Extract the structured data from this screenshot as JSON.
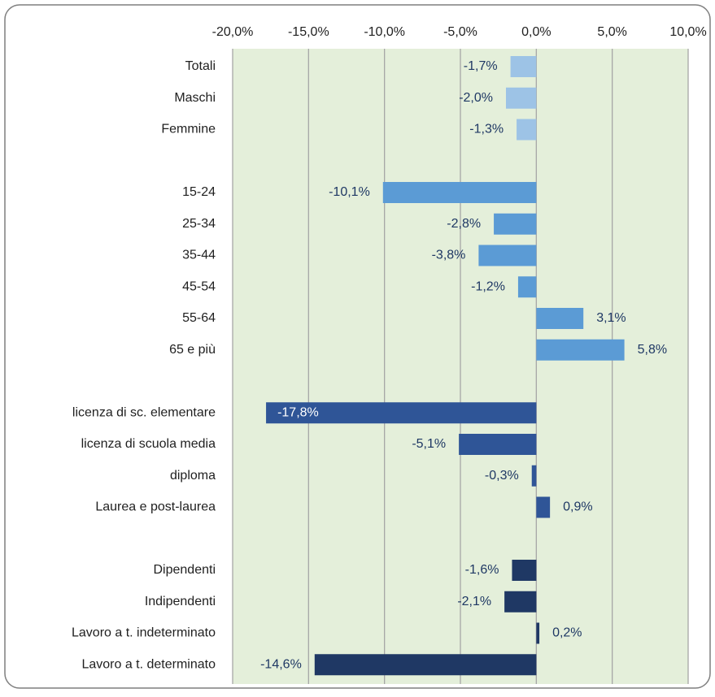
{
  "chart_data": {
    "type": "bar",
    "orientation": "horizontal",
    "categories": [
      "Totali",
      "Maschi",
      "Femmine",
      null,
      "15-24",
      "25-34",
      "35-44",
      "45-54",
      "55-64",
      "65 e più",
      null,
      "licenza di sc. elementare",
      "licenza di scuola media",
      "diploma",
      "Laurea e post-laurea",
      null,
      "Dipendenti",
      "Indipendenti",
      "Lavoro a t. indeterminato",
      "Lavoro a t. determinato"
    ],
    "values": [
      -1.7,
      -2.0,
      -1.3,
      null,
      -10.1,
      -2.8,
      -3.8,
      -1.2,
      3.1,
      5.8,
      null,
      -17.8,
      -5.1,
      -0.3,
      0.9,
      null,
      -1.6,
      -2.1,
      0.2,
      -14.6
    ],
    "value_labels": [
      "-1,7%",
      "-2,0%",
      "-1,3%",
      null,
      "-10,1%",
      "-2,8%",
      "-3,8%",
      "-1,2%",
      "3,1%",
      "5,8%",
      null,
      "-17,8%",
      "-5,1%",
      "-0,3%",
      "0,9%",
      null,
      "-1,6%",
      "-2,1%",
      "0,2%",
      "-14,6%"
    ],
    "colors": [
      "#9dc3e6",
      "#9dc3e6",
      "#9dc3e6",
      null,
      "#5b9bd5",
      "#5b9bd5",
      "#5b9bd5",
      "#5b9bd5",
      "#5b9bd5",
      "#5b9bd5",
      null,
      "#2f5597",
      "#2f5597",
      "#2f5597",
      "#2f5597",
      null,
      "#1f3864",
      "#1f3864",
      "#1f3864",
      "#1f3864"
    ],
    "xlim": [
      -20,
      10
    ],
    "xticks": [
      {
        "value": -20,
        "label": "-20,0%"
      },
      {
        "value": -15,
        "label": "-15,0%"
      },
      {
        "value": -10,
        "label": "-10,0%"
      },
      {
        "value": -5,
        "label": "-5,0%"
      },
      {
        "value": 0,
        "label": "0,0%"
      },
      {
        "value": 5,
        "label": "5,0%"
      },
      {
        "value": 10,
        "label": "10,0%"
      }
    ],
    "grid": true
  }
}
